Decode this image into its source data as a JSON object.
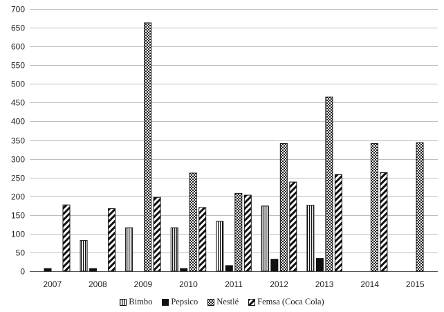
{
  "chart_data": {
    "type": "bar",
    "categories": [
      "2007",
      "2008",
      "2009",
      "2010",
      "2011",
      "2012",
      "2013",
      "2014",
      "2015"
    ],
    "series": [
      {
        "name": "Bimbo",
        "pattern": "vertical-lines",
        "values": [
          0,
          82,
          116,
          116,
          133,
          174,
          176,
          0,
          0
        ]
      },
      {
        "name": "Pepsico",
        "pattern": "solid-black",
        "values": [
          7,
          7,
          0,
          7,
          15,
          32,
          34,
          0,
          0
        ]
      },
      {
        "name": "Nestlé",
        "pattern": "checker",
        "values": [
          0,
          0,
          663,
          262,
          208,
          341,
          465,
          341,
          343
        ]
      },
      {
        "name": "Femsa (Coca Cola)",
        "pattern": "diagonal-stripes",
        "values": [
          177,
          167,
          197,
          170,
          203,
          238,
          258,
          263,
          0
        ]
      }
    ],
    "yticks": [
      "0",
      "50",
      "100",
      "150",
      "200",
      "250",
      "300",
      "350",
      "400",
      "450",
      "500",
      "550",
      "600",
      "650",
      "700"
    ],
    "ylim": [
      0,
      700
    ],
    "grid": true,
    "legend_position": "bottom",
    "title": "",
    "xlabel": "",
    "ylabel": ""
  }
}
